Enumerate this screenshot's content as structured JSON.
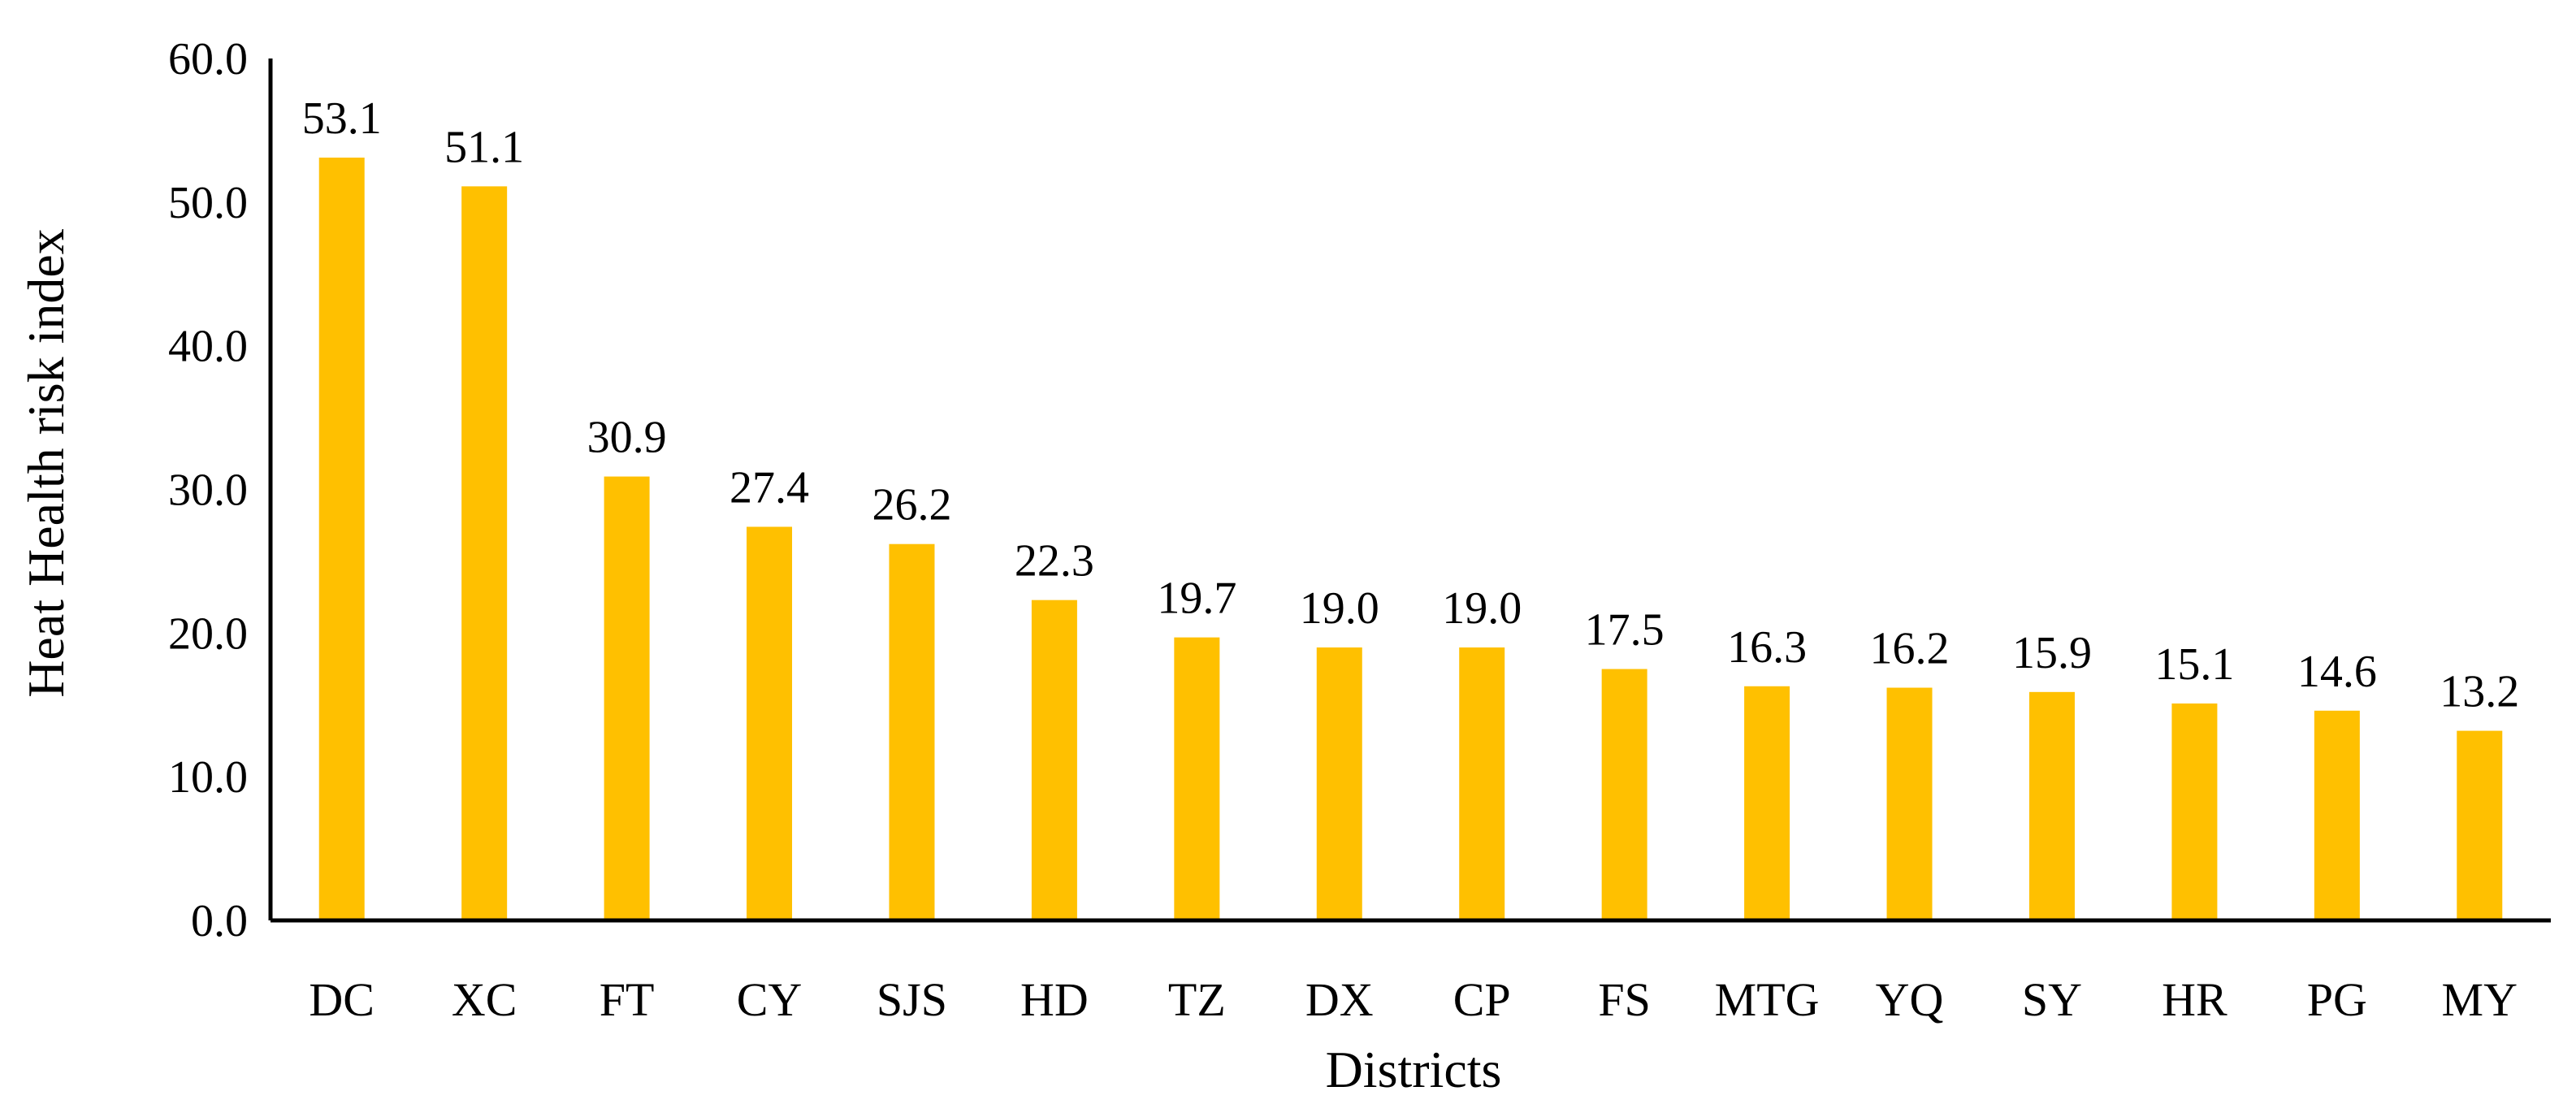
{
  "chart_data": {
    "type": "bar",
    "title": "",
    "xlabel": "Districts",
    "ylabel": "Heat Health risk index",
    "categories": [
      "DC",
      "XC",
      "FT",
      "CY",
      "SJS",
      "HD",
      "TZ",
      "DX",
      "CP",
      "FS",
      "MTG",
      "YQ",
      "SY",
      "HR",
      "PG",
      "MY"
    ],
    "values": [
      53.1,
      51.1,
      30.9,
      27.4,
      26.2,
      22.3,
      19.7,
      19.0,
      19.0,
      17.5,
      16.3,
      16.2,
      15.9,
      15.1,
      14.6,
      13.2
    ],
    "data_labels": [
      "53.1",
      "51.1",
      "30.9",
      "27.4",
      "26.2",
      "22.3",
      "19.7",
      "19.0",
      "19.0",
      "17.5",
      "16.3",
      "16.2",
      "15.9",
      "15.1",
      "14.6",
      "13.2"
    ],
    "yticks": [
      "0.0",
      "10.0",
      "20.0",
      "30.0",
      "40.0",
      "50.0",
      "60.0"
    ],
    "ylim": [
      0,
      60
    ],
    "grid": false,
    "legend": "none",
    "bar_color": "#FFC000",
    "axis_color": "#000000"
  }
}
